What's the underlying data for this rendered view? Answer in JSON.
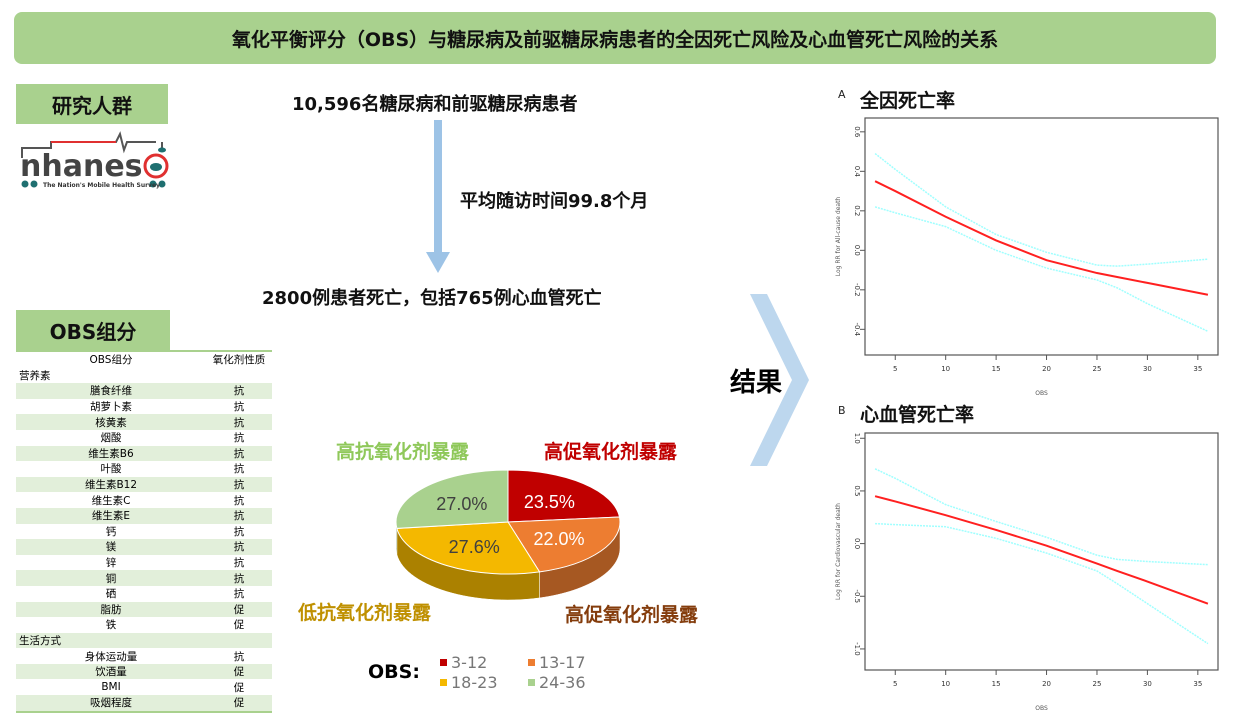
{
  "title": "氧化平衡评分（OBS）与糖尿病及前驱糖尿病患者的全因死亡风险及心血管死亡风险的关系",
  "population": {
    "tag": "研究人群",
    "logo_text": "nhanes",
    "logo_tagline": "The Nation's Mobile Health Survey"
  },
  "flow": {
    "participants": "10,596名糖尿病和前驱糖尿病患者",
    "followup": "平均随访时间99.8个月",
    "deaths": "2800例患者死亡，包括765例心血管死亡",
    "results": "结果"
  },
  "obs_groups": {
    "tag": "OBS组分",
    "headers": [
      "OBS组分",
      "氧化剂性质"
    ],
    "rows": [
      {
        "name": "营养素",
        "type": "",
        "section": true
      },
      {
        "name": "膳食纤维",
        "type": "抗"
      },
      {
        "name": "胡萝卜素",
        "type": "抗"
      },
      {
        "name": "核黄素",
        "type": "抗"
      },
      {
        "name": "烟酸",
        "type": "抗"
      },
      {
        "name": "维生素B6",
        "type": "抗"
      },
      {
        "name": "叶酸",
        "type": "抗"
      },
      {
        "name": "维生素B12",
        "type": "抗"
      },
      {
        "name": "维生素C",
        "type": "抗"
      },
      {
        "name": "维生素E",
        "type": "抗"
      },
      {
        "name": "钙",
        "type": "抗"
      },
      {
        "name": "镁",
        "type": "抗"
      },
      {
        "name": "锌",
        "type": "抗"
      },
      {
        "name": "铜",
        "type": "抗"
      },
      {
        "name": "硒",
        "type": "抗"
      },
      {
        "name": "脂肪",
        "type": "促"
      },
      {
        "name": "铁",
        "type": "促"
      },
      {
        "name": "生活方式",
        "type": "",
        "section": true
      },
      {
        "name": "身体运动量",
        "type": "抗"
      },
      {
        "name": "饮酒量",
        "type": "促"
      },
      {
        "name": "BMI",
        "type": "促"
      },
      {
        "name": "吸烟程度",
        "type": "促"
      }
    ]
  },
  "chart_data": [
    {
      "type": "pie",
      "legend_title": "OBS:",
      "slices": [
        {
          "category": "3-12",
          "value": 23.5,
          "label": "23.5%",
          "color": "#c00000",
          "group_label": "高促氧化剂暴露",
          "group_color": "#c00000"
        },
        {
          "category": "13-17",
          "value": 22.0,
          "label": "22.0%",
          "color": "#ed7d31",
          "group_label": "高促氧化剂暴露",
          "group_color": "#843c0c"
        },
        {
          "category": "18-23",
          "value": 27.6,
          "label": "27.6%",
          "color": "#f4b800",
          "group_label": "低抗氧化剂暴露",
          "group_color": "#bf9000"
        },
        {
          "category": "24-36",
          "value": 27.0,
          "label": "27.0%",
          "color": "#a9d18e",
          "group_label": "高抗氧化剂暴露",
          "group_color": "#8fc85a"
        }
      ]
    },
    {
      "type": "line",
      "panel": "A",
      "title": "全因死亡率",
      "xlabel": "OBS",
      "ylabel": "Log RR for All-cause death",
      "xlim": [
        2,
        37
      ],
      "ylim": [
        -0.53,
        0.67
      ],
      "xticks": [
        5,
        10,
        15,
        20,
        25,
        30,
        35
      ],
      "yticks": [
        -0.4,
        -0.2,
        0.0,
        0.2,
        0.4,
        0.6
      ],
      "x": [
        3,
        5,
        10,
        15,
        20,
        25,
        27,
        30,
        36
      ],
      "series": [
        {
          "role": "estimate",
          "color": "#ff2020",
          "values": [
            0.35,
            0.3,
            0.17,
            0.05,
            -0.05,
            -0.115,
            -0.135,
            -0.165,
            -0.225
          ]
        },
        {
          "role": "upper",
          "color": "#a0ffff",
          "values": [
            0.49,
            0.41,
            0.22,
            0.08,
            -0.01,
            -0.075,
            -0.08,
            -0.07,
            -0.045
          ]
        },
        {
          "role": "lower",
          "color": "#a0ffff",
          "values": [
            0.22,
            0.19,
            0.12,
            0.0,
            -0.09,
            -0.15,
            -0.19,
            -0.27,
            -0.41
          ]
        }
      ]
    },
    {
      "type": "line",
      "panel": "B",
      "title": "心血管死亡率",
      "xlabel": "OBS",
      "ylabel": "Log RR for Cardiovascular death",
      "xlim": [
        2,
        37
      ],
      "ylim": [
        -1.2,
        1.05
      ],
      "xticks": [
        5,
        10,
        15,
        20,
        25,
        30,
        35
      ],
      "yticks": [
        -1.0,
        -0.5,
        0.0,
        0.5,
        1.0
      ],
      "x": [
        3,
        5,
        10,
        15,
        20,
        25,
        27,
        30,
        36
      ],
      "series": [
        {
          "role": "estimate",
          "color": "#ff2020",
          "values": [
            0.45,
            0.4,
            0.27,
            0.13,
            -0.02,
            -0.19,
            -0.26,
            -0.36,
            -0.57
          ]
        },
        {
          "role": "upper",
          "color": "#a0ffff",
          "values": [
            0.71,
            0.62,
            0.37,
            0.21,
            0.06,
            -0.11,
            -0.15,
            -0.17,
            -0.2
          ]
        },
        {
          "role": "lower",
          "color": "#a0ffff",
          "values": [
            0.19,
            0.18,
            0.16,
            0.05,
            -0.09,
            -0.26,
            -0.38,
            -0.57,
            -0.95
          ]
        }
      ]
    }
  ]
}
